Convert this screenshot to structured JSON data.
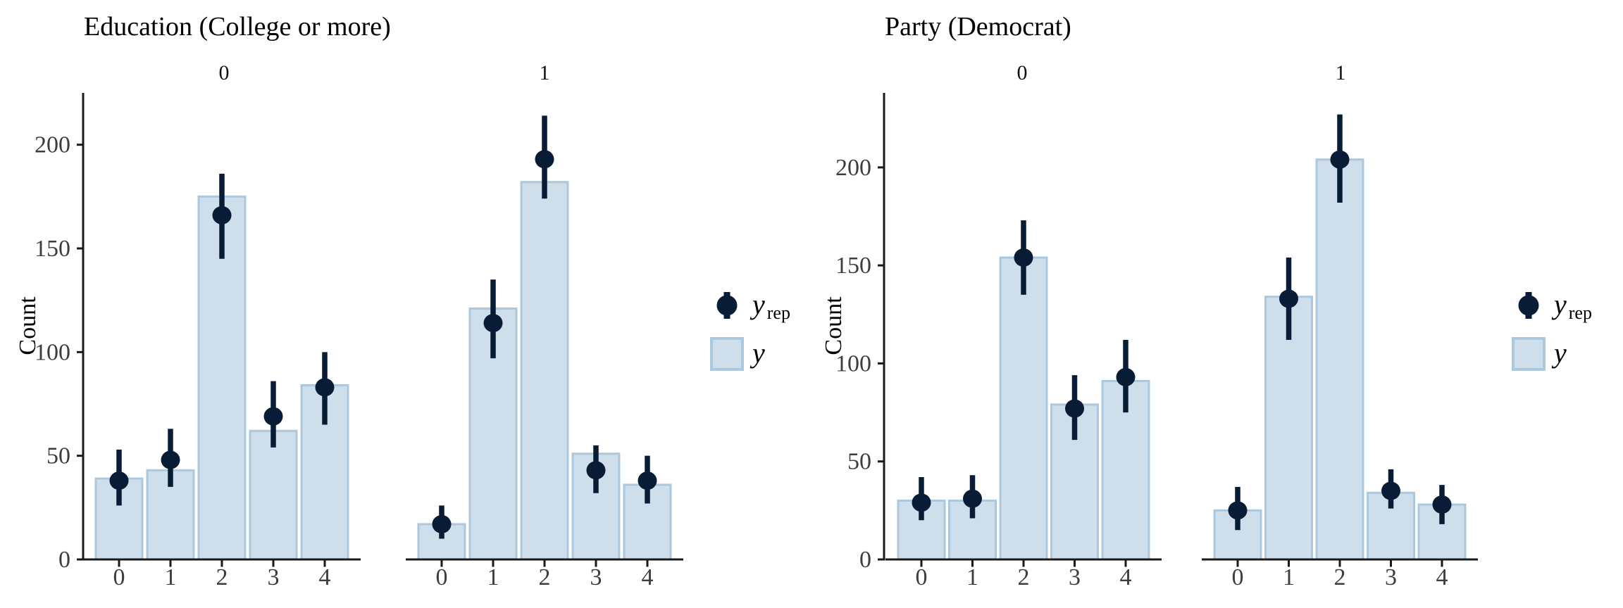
{
  "figure": {
    "background": "#ffffff"
  },
  "colors": {
    "bar_fill": "#cfdeeb",
    "bar_border": "#abc8de",
    "point": "#081c35",
    "axis": "#1a1a1a",
    "tick_label": "#3d3d3d",
    "text": "#000000"
  },
  "legend": {
    "yrep_main": "y",
    "yrep_sub": "rep",
    "y_main": "y"
  },
  "chart_data": [
    {
      "type": "bar",
      "title": "Education (College or more)",
      "ylabel": "Count",
      "xlabel": "",
      "grid": false,
      "legend_position": "right",
      "yticks": [
        0,
        50,
        100,
        150,
        200
      ],
      "ylim": [
        0,
        225
      ],
      "categories": [
        "0",
        "1",
        "2",
        "3",
        "4"
      ],
      "facets": [
        {
          "label": "0",
          "series": [
            {
              "name": "y",
              "type": "bar",
              "values": [
                39,
                43,
                175,
                62,
                84
              ]
            },
            {
              "name": "y_rep",
              "type": "pointrange",
              "values": [
                38,
                48,
                166,
                69,
                83
              ],
              "lower": [
                26,
                35,
                145,
                54,
                65
              ],
              "upper": [
                53,
                63,
                186,
                86,
                100
              ]
            }
          ]
        },
        {
          "label": "1",
          "series": [
            {
              "name": "y",
              "type": "bar",
              "values": [
                17,
                121,
                182,
                51,
                36
              ]
            },
            {
              "name": "y_rep",
              "type": "pointrange",
              "values": [
                17,
                114,
                193,
                43,
                38
              ],
              "lower": [
                10,
                97,
                174,
                32,
                27
              ],
              "upper": [
                26,
                135,
                214,
                55,
                50
              ]
            }
          ]
        }
      ]
    },
    {
      "type": "bar",
      "title": "Party (Democrat)",
      "ylabel": "Count",
      "xlabel": "",
      "grid": false,
      "legend_position": "right",
      "yticks": [
        0,
        50,
        100,
        150,
        200
      ],
      "ylim": [
        0,
        238
      ],
      "categories": [
        "0",
        "1",
        "2",
        "3",
        "4"
      ],
      "facets": [
        {
          "label": "0",
          "series": [
            {
              "name": "y",
              "type": "bar",
              "values": [
                30,
                30,
                154,
                79,
                91
              ]
            },
            {
              "name": "y_rep",
              "type": "pointrange",
              "values": [
                29,
                31,
                154,
                77,
                93
              ],
              "lower": [
                20,
                21,
                135,
                61,
                75
              ],
              "upper": [
                42,
                43,
                173,
                94,
                112
              ]
            }
          ]
        },
        {
          "label": "1",
          "series": [
            {
              "name": "y",
              "type": "bar",
              "values": [
                25,
                134,
                204,
                34,
                28
              ]
            },
            {
              "name": "y_rep",
              "type": "pointrange",
              "values": [
                25,
                133,
                204,
                35,
                28
              ],
              "lower": [
                15,
                112,
                182,
                26,
                18
              ],
              "upper": [
                37,
                154,
                227,
                46,
                38
              ]
            }
          ]
        }
      ]
    }
  ]
}
